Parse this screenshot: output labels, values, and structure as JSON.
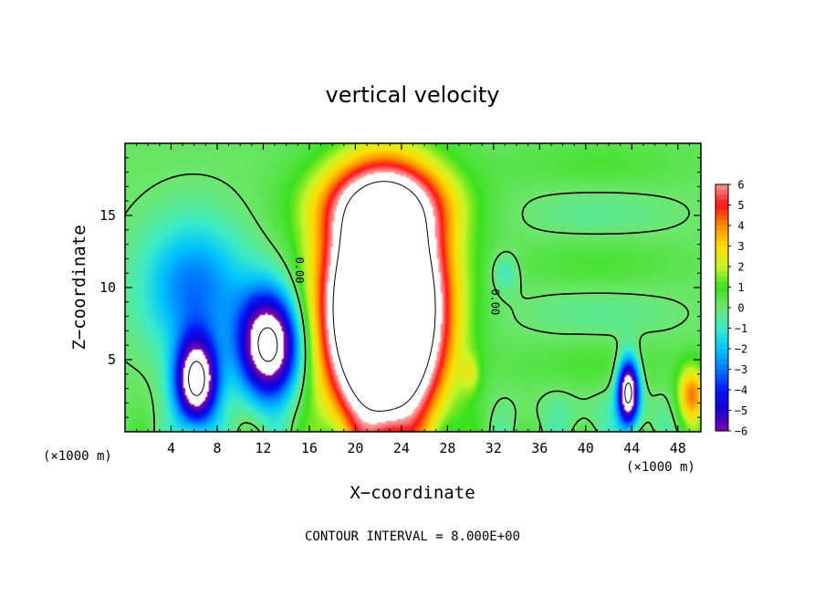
{
  "chart_data": {
    "type": "heatmap",
    "title": "vertical velocity",
    "xlabel": "X−coordinate",
    "ylabel": "Z−coordinate",
    "x_unit_label": "(×1000 m)",
    "x_ticks": [
      "4",
      "8",
      "12",
      "16",
      "20",
      "24",
      "28",
      "32",
      "36",
      "40",
      "44",
      "48"
    ],
    "x_tick_values": [
      4,
      8,
      12,
      16,
      20,
      24,
      28,
      32,
      36,
      40,
      44,
      48
    ],
    "y_ticks": [
      "5",
      "10",
      "15"
    ],
    "y_tick_values": [
      5,
      10,
      15
    ],
    "xlim": [
      0,
      50
    ],
    "ylim": [
      0,
      20
    ],
    "colorbar": {
      "labels": [
        "6",
        "5",
        "4",
        "3",
        "2",
        "1",
        "0",
        "−1",
        "−2",
        "−3",
        "−4",
        "−5",
        "−6"
      ],
      "values": [
        6,
        5,
        4,
        3,
        2,
        1,
        0,
        -1,
        -2,
        -3,
        -4,
        -5,
        -6
      ],
      "range": [
        -6,
        6
      ],
      "above_max_color": "#ffffff",
      "below_min_color": "#ffffff"
    },
    "contour_label": "0.00",
    "contour_interval_text": "CONTOUR INTERVAL = 8.000E+00",
    "features": [
      {
        "sign": "updraft",
        "center": [
          22.5,
          8.5
        ],
        "radius": [
          4.6,
          7.4
        ],
        "peak": 20
      },
      {
        "sign": "updraft",
        "center": [
          22.5,
          15.8
        ],
        "radius": [
          6.0,
          2.8
        ],
        "peak": 4.2
      },
      {
        "sign": "downdraft",
        "center": [
          12.5,
          6.0
        ],
        "radius": [
          2.6,
          3.6
        ],
        "peak": -9
      },
      {
        "sign": "downdraft",
        "center": [
          6.2,
          3.5
        ],
        "radius": [
          1.8,
          3.0
        ],
        "peak": -9
      },
      {
        "sign": "downdraft",
        "center": [
          6.0,
          10.0
        ],
        "radius": [
          4.5,
          4.5
        ],
        "peak": -3.2
      },
      {
        "sign": "downdraft",
        "center": [
          43.7,
          2.8
        ],
        "radius": [
          0.9,
          2.2
        ],
        "peak": -9
      },
      {
        "sign": "updraft",
        "center": [
          49.2,
          2.5
        ],
        "radius": [
          1.2,
          2.0
        ],
        "peak": 4.0
      }
    ]
  }
}
